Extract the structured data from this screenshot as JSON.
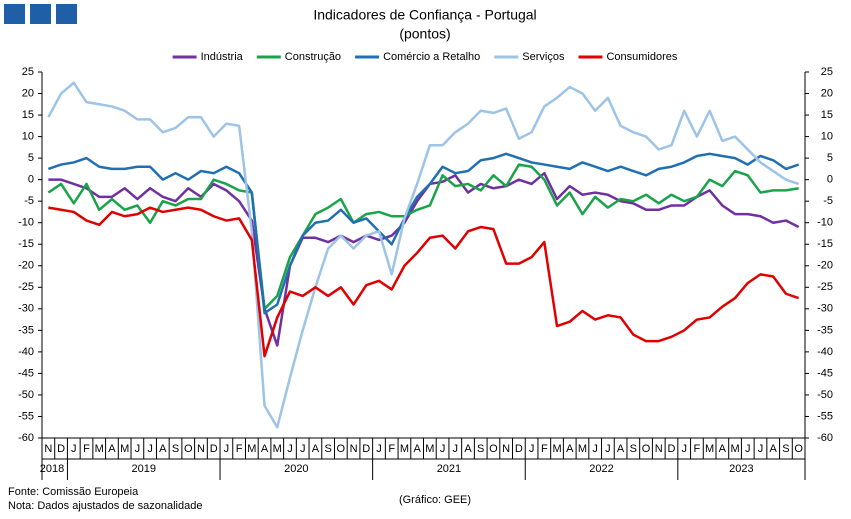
{
  "chart_data": {
    "type": "line",
    "title": "Indicadores de Confiança - Portugal",
    "subtitle": "(pontos)",
    "categories": [
      "N",
      "D",
      "J",
      "F",
      "M",
      "A",
      "M",
      "J",
      "J",
      "A",
      "S",
      "O",
      "N",
      "D",
      "J",
      "F",
      "M",
      "A",
      "M",
      "J",
      "J",
      "A",
      "S",
      "O",
      "N",
      "D",
      "J",
      "F",
      "M",
      "A",
      "M",
      "J",
      "J",
      "A",
      "S",
      "O",
      "N",
      "D",
      "J",
      "F",
      "M",
      "A",
      "M",
      "J",
      "J",
      "A",
      "S",
      "O",
      "N",
      "D",
      "J",
      "F",
      "M",
      "A",
      "M",
      "J",
      "J",
      "A",
      "S",
      "O"
    ],
    "years": [
      "2018",
      "2019",
      "2020",
      "2021",
      "2022",
      "2023"
    ],
    "series": [
      {
        "name": "Indústria",
        "color": "#7030a0",
        "values": [
          0,
          0,
          -1,
          -2,
          -4,
          -4,
          -2,
          -4.5,
          -2,
          -4,
          -5,
          -2,
          -4,
          -1,
          -2.5,
          -5,
          -9.5,
          -30,
          -38.5,
          -20,
          -13.5,
          -13.5,
          -14.5,
          -13,
          -14.5,
          -13,
          -14,
          -13,
          -10,
          -5,
          -1,
          -0.5,
          1,
          -3,
          -1,
          -2,
          -1.5,
          0,
          -1,
          1.5,
          -4.5,
          -1.5,
          -3.5,
          -3,
          -3.5,
          -5,
          -5.5,
          -7,
          -7,
          -6,
          -6,
          -4,
          -2.5,
          -6,
          -8,
          -8,
          -8.5,
          -10,
          -9.5,
          -11
        ]
      },
      {
        "name": "Construção",
        "color": "#1aa34a",
        "values": [
          -3,
          -1,
          -5.5,
          -1,
          -7,
          -4.5,
          -7,
          -6,
          -10,
          -5,
          -6,
          -4.5,
          -4.5,
          0,
          -1,
          -2.5,
          -3,
          -30,
          -27,
          -18,
          -13,
          -8,
          -6.5,
          -4.5,
          -10,
          -8,
          -7.5,
          -8.5,
          -8.5,
          -7,
          -6,
          1,
          -1.5,
          -1,
          -2.5,
          1,
          -1.5,
          3.5,
          3,
          0,
          -6,
          -3,
          -8,
          -4,
          -6.5,
          -4.5,
          -5,
          -3.5,
          -5.5,
          -3.5,
          -5,
          -4,
          0,
          -1.5,
          2,
          1,
          -3,
          -2.5,
          -2.5,
          -2
        ]
      },
      {
        "name": "Comércio a Retalho",
        "color": "#1f6fb2",
        "values": [
          2.5,
          3.5,
          4,
          5,
          3,
          2.5,
          2.5,
          3,
          3,
          0,
          1.5,
          0,
          2,
          1.5,
          3,
          1.5,
          -3,
          -31,
          -29,
          -20,
          -13,
          -10,
          -9.5,
          -7,
          -10,
          -9,
          -12,
          -15,
          -9,
          -4,
          -1,
          3,
          1.5,
          2,
          4.5,
          5,
          6,
          5,
          4,
          3.5,
          3,
          2.5,
          4,
          3,
          2,
          3,
          2,
          1,
          2.5,
          3,
          4,
          5.5,
          6,
          5.5,
          5,
          3.5,
          5.5,
          4.5,
          2.5,
          3.5
        ]
      },
      {
        "name": "Serviços",
        "color": "#9dc3e6",
        "values": [
          14.5,
          20,
          22.5,
          18,
          17.5,
          17,
          16,
          14,
          14,
          11,
          12,
          14.5,
          14.5,
          10,
          13,
          12.5,
          -12,
          -52.5,
          -57.5,
          -46,
          -35,
          -25,
          -16,
          -13,
          -16,
          -13,
          -12,
          -22,
          -9,
          -1,
          8,
          8,
          11,
          13,
          16,
          15.5,
          16.5,
          9.5,
          11,
          17,
          19,
          21.5,
          20,
          16,
          19,
          12.5,
          11,
          10,
          7,
          8,
          16,
          10,
          16,
          9,
          10,
          7,
          4,
          2,
          0,
          -1
        ]
      },
      {
        "name": "Consumidores",
        "color": "#e00000",
        "values": [
          -6.5,
          -7,
          -7.5,
          -9.5,
          -10.5,
          -7.5,
          -8.5,
          -8,
          -6.5,
          -7.5,
          -7,
          -6.5,
          -7,
          -8.5,
          -9.5,
          -9,
          -14,
          -41,
          -32,
          -26,
          -27,
          -25,
          -27,
          -25,
          -29,
          -24.5,
          -23.5,
          -25.5,
          -20,
          -17,
          -13.5,
          -13,
          -16,
          -12,
          -11,
          -11.5,
          -19.5,
          -19.5,
          -18,
          -14.5,
          -34,
          -33,
          -30.5,
          -32.5,
          -31.5,
          -32,
          -36,
          -37.5,
          -37.5,
          -36.5,
          -35,
          -32.5,
          -32,
          -29.5,
          -27.5,
          -24,
          -22,
          -22.5,
          -26.5,
          -27.5
        ]
      }
    ],
    "ylim": [
      -60,
      25
    ],
    "yticks": [
      -60,
      -55,
      -50,
      -45,
      -40,
      -35,
      -30,
      -25,
      -20,
      -15,
      -10,
      -5,
      0,
      5,
      10,
      15,
      20,
      25
    ],
    "y2lim": [
      -60,
      25
    ],
    "y2ticks": [
      -60,
      -55,
      -50,
      -45,
      -40,
      -35,
      -30,
      -25,
      -20,
      -15,
      -10,
      -5,
      0,
      5,
      10,
      15,
      20,
      25
    ],
    "grid": false,
    "legend": "top",
    "source": "Fonte: Comissão Europeia",
    "note": "Nota: Dados ajustados de sazonalidade",
    "credit": "(Gráfico: GEE)"
  }
}
